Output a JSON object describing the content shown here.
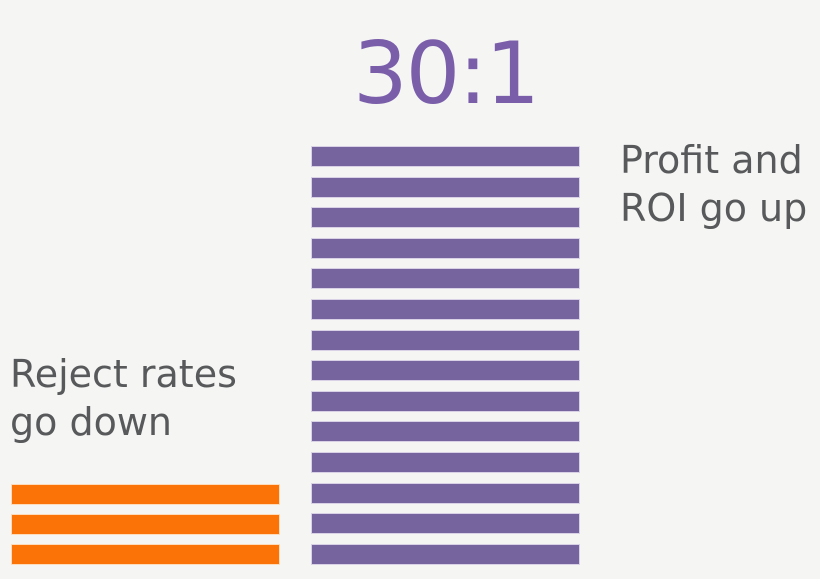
{
  "heading": {
    "ratio": "30:1"
  },
  "labels": {
    "left": "Reject rates\ngo down",
    "right": "Profit and\nROI go up"
  },
  "colors": {
    "background": "#F5F5F4",
    "heading_purple": "#7A5EA9",
    "label_gray": "#58595B",
    "purple_bar_fill": "#76649F",
    "purple_stripe_border": "#D9D1E6",
    "orange_bar_fill": "#FB7306",
    "orange_stripe_border": "#FDDCBC"
  },
  "chart_data": {
    "type": "bar",
    "orientation": "vertical",
    "title": "30:1",
    "grid": false,
    "legend_position": "none",
    "categories": [
      "Reject rates go down",
      "Profit and ROI go up"
    ],
    "values": [
      1,
      30
    ],
    "annotations": [
      "30:1 ratio shown above the tall purple bar",
      "bars are drawn as stacks of horizontal stripes, bottom-aligned"
    ],
    "series": [
      {
        "name": "reject-rates-bar",
        "label": "Reject rates go down",
        "ratio_value": 1,
        "stripe_count": 3,
        "color": "#FB7306",
        "stripe_border": "#FDDCBC"
      },
      {
        "name": "profit-roi-bar",
        "label": "Profit and ROI go up",
        "ratio_value": 30,
        "stripe_count": 14,
        "color": "#76649F",
        "stripe_border": "#D9D1E6"
      }
    ]
  }
}
